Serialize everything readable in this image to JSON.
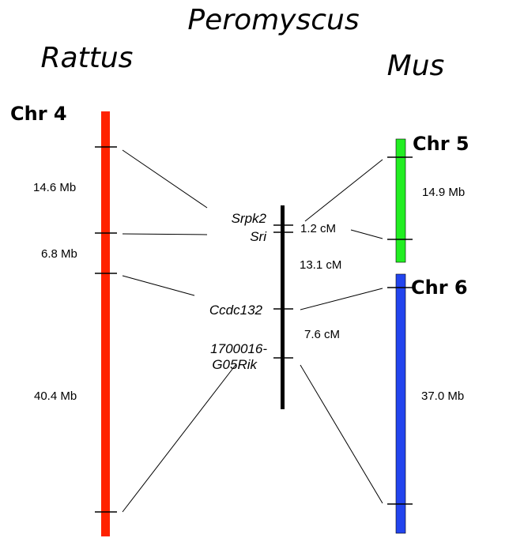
{
  "species": {
    "center": "Peromyscus",
    "left": "Rattus",
    "right": "Mus"
  },
  "chromosomes": {
    "rat_chr4": {
      "label": "Chr 4",
      "color": "#ff2200"
    },
    "mouse_chr5": {
      "label": "Chr 5",
      "color": "#22ee22"
    },
    "mouse_chr6": {
      "label": "Chr 6",
      "color": "#2244ee"
    },
    "peromyscus": {
      "color": "#000000"
    }
  },
  "distances": {
    "rat": [
      "14.6 Mb",
      "6.8 Mb",
      "40.4 Mb"
    ],
    "mouse": [
      "14.9 Mb",
      "37.0 Mb"
    ],
    "peromyscus": [
      "1.2 cM",
      "13.1 cM",
      "7.6 cM"
    ]
  },
  "genes": [
    "Srpk2",
    "Sri",
    "Ccdc132",
    "1700016-",
    "G05Rik"
  ]
}
